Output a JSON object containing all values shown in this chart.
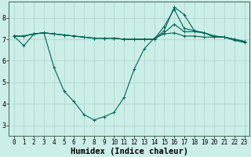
{
  "title": "",
  "xlabel": "Humidex (Indice chaleur)",
  "ylabel": "",
  "background_color": "#cceee8",
  "grid_color": "#b0d8d0",
  "line_color": "#006655",
  "xlim": [
    -0.5,
    23.5
  ],
  "ylim": [
    2.5,
    8.75
  ],
  "yticks": [
    3,
    4,
    5,
    6,
    7,
    8
  ],
  "xticks": [
    0,
    1,
    2,
    3,
    4,
    5,
    6,
    7,
    8,
    9,
    10,
    11,
    12,
    13,
    14,
    15,
    16,
    17,
    18,
    19,
    20,
    21,
    22,
    23
  ],
  "series": [
    {
      "x": [
        0,
        1,
        2,
        3,
        4,
        5,
        6,
        7,
        8,
        9,
        10,
        11,
        12,
        13,
        14,
        15,
        16,
        17,
        18,
        19,
        20,
        21,
        22,
        23
      ],
      "y": [
        7.15,
        6.7,
        7.25,
        7.3,
        5.7,
        4.6,
        4.1,
        3.5,
        3.25,
        3.4,
        3.6,
        4.3,
        5.6,
        6.55,
        7.05,
        7.25,
        7.3,
        7.15,
        7.15,
        7.1,
        7.1,
        7.1,
        6.95,
        6.85
      ]
    },
    {
      "x": [
        0,
        1,
        2,
        3,
        4,
        5,
        6,
        7,
        8,
        9,
        10,
        11,
        12,
        13,
        14,
        15,
        16,
        17,
        18,
        19,
        20,
        21,
        22,
        23
      ],
      "y": [
        7.15,
        7.15,
        7.25,
        7.3,
        7.25,
        7.2,
        7.15,
        7.1,
        7.05,
        7.05,
        7.05,
        7.0,
        7.0,
        7.0,
        7.0,
        7.6,
        8.4,
        7.5,
        7.4,
        7.3,
        7.15,
        7.1,
        7.0,
        6.9
      ]
    },
    {
      "x": [
        0,
        1,
        2,
        3,
        4,
        5,
        6,
        7,
        8,
        9,
        10,
        11,
        12,
        13,
        14,
        15,
        16,
        17,
        18,
        19,
        20,
        21,
        22,
        23
      ],
      "y": [
        7.15,
        7.15,
        7.25,
        7.3,
        7.25,
        7.2,
        7.15,
        7.1,
        7.05,
        7.05,
        7.05,
        7.0,
        7.0,
        7.0,
        7.0,
        7.4,
        8.5,
        8.15,
        7.4,
        7.3,
        7.15,
        7.1,
        7.0,
        6.9
      ]
    },
    {
      "x": [
        0,
        1,
        2,
        3,
        4,
        5,
        6,
        7,
        8,
        9,
        10,
        11,
        12,
        13,
        14,
        15,
        16,
        17,
        18,
        19,
        20,
        21,
        22,
        23
      ],
      "y": [
        7.15,
        7.15,
        7.25,
        7.3,
        7.25,
        7.2,
        7.15,
        7.1,
        7.05,
        7.05,
        7.05,
        7.0,
        7.0,
        7.0,
        7.0,
        7.3,
        7.7,
        7.35,
        7.35,
        7.3,
        7.1,
        7.1,
        7.0,
        6.9
      ]
    }
  ],
  "marker": "+",
  "markersize": 3,
  "linewidth": 0.8,
  "tick_fontsize": 5.5,
  "xlabel_fontsize": 7.5
}
